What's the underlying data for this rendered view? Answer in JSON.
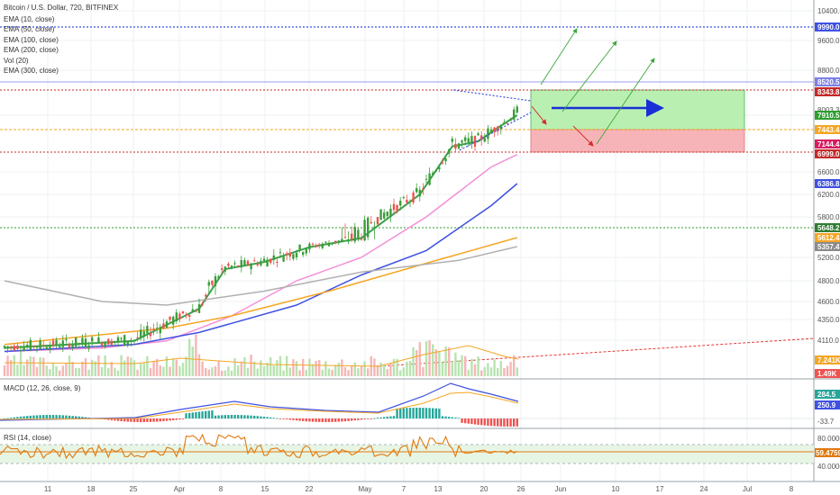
{
  "header": {
    "symbol_title": "Bitcoin / U.S. Dollar, 720, BITFINEX",
    "indicators": [
      "EMA (10, close)",
      "EMA (50, close)",
      "EMA (100, close)",
      "EMA (200, close)",
      "Vol (20)",
      "EMA (300, close)"
    ]
  },
  "panes": {
    "macd_title": "MACD (12, 26, close, 9)",
    "rsi_title": "RSI (14, close)"
  },
  "colors": {
    "up": "#26a69a",
    "candle_up": "#3c9e3a",
    "down": "#ef5350",
    "ema10": "#3aa04a",
    "ema50": "#f48fd8",
    "ema100": "#3f51e0",
    "ema200": "#f5a623",
    "ema300": "#b0b0b0",
    "rsi": "#e07a10",
    "macd_line": "#3f51e0",
    "macd_signal": "#f5a623"
  },
  "chart_data": {
    "type": "line",
    "title": "Bitcoin / U.S. Dollar, 720, BITFINEX",
    "price_axis": {
      "ticks": [
        10400,
        9990,
        9600,
        8800,
        8343.8,
        8003.3,
        7910.5,
        7443.4,
        7144.4,
        6999,
        6600,
        6386.8,
        6200,
        5800,
        5648.2,
        5612.4,
        5357.4,
        5200,
        4800,
        4600,
        4350,
        4110
      ],
      "tick_labels": [
        "10400.0",
        "9990.0",
        "9600.0",
        "8800.0",
        "8343.8",
        "8003.3",
        "7910.5",
        "7443.4",
        "7144.4",
        "6999.0",
        "6600.0",
        "6386.8",
        "6200.0",
        "5800.0",
        "5648.2",
        "5612.4",
        "5357.4",
        "5200.0",
        "4800.0",
        "4600.0",
        "4350.0",
        "4110.0"
      ]
    },
    "price_tags": [
      {
        "label": "9990.0",
        "value": 9990,
        "color": "#3f51e0"
      },
      {
        "label": "8520.5",
        "value": 8520.5,
        "color": "#7b7fe8"
      },
      {
        "label": "8343.8",
        "value": 8343.8,
        "color": "#c62828"
      },
      {
        "label": "7910.5",
        "value": 7910.5,
        "color": "#2e9d2e"
      },
      {
        "label": "7443.4",
        "value": 7443.4,
        "color": "#f5a623"
      },
      {
        "label": "7144.4",
        "value": 7144.4,
        "color": "#d81b60"
      },
      {
        "label": "6999.0",
        "value": 6999,
        "color": "#c62828"
      },
      {
        "label": "6386.8",
        "value": 6386.8,
        "color": "#3f51e0"
      },
      {
        "label": "5648.2",
        "value": 5648.2,
        "color": "#2e7d32"
      },
      {
        "label": "5612.4",
        "value": 5612.4,
        "color": "#f5a623"
      },
      {
        "label": "5357.4",
        "value": 5357.4,
        "color": "#8a8a8a"
      },
      {
        "label": "7.241K",
        "value": 7241,
        "color": "#f5a623"
      },
      {
        "label": "1.49K",
        "value": 1490,
        "color": "#ef5350"
      }
    ],
    "x_labels": [
      "11",
      "18",
      "25",
      "Apr",
      "8",
      "15",
      "22",
      "May",
      "7",
      "13",
      "20",
      "26",
      "Jun",
      "10",
      "17",
      "24",
      "Jul",
      "8"
    ],
    "macd_axis": {
      "tick_labels": [
        "284.5",
        "250.9",
        "-33.7"
      ]
    },
    "rsi_axis": {
      "tick_labels": [
        "80.0000",
        "59.4759",
        "40.0000"
      ]
    },
    "series": [
      {
        "name": "EMA (10, close)",
        "points": [
          [
            0,
            4000
          ],
          [
            20,
            4050
          ],
          [
            40,
            4100
          ],
          [
            60,
            4500
          ],
          [
            68,
            5000
          ],
          [
            80,
            5120
          ],
          [
            94,
            5350
          ],
          [
            110,
            5600
          ],
          [
            128,
            6200
          ],
          [
            138,
            7100
          ],
          [
            146,
            7200
          ],
          [
            152,
            7500
          ],
          [
            158,
            7910.5
          ]
        ]
      },
      {
        "name": "EMA (50, close)",
        "points": [
          [
            0,
            3950
          ],
          [
            30,
            4000
          ],
          [
            50,
            4100
          ],
          [
            70,
            4400
          ],
          [
            90,
            4800
          ],
          [
            110,
            5200
          ],
          [
            130,
            5800
          ],
          [
            150,
            6700
          ],
          [
            158,
            6950
          ]
        ]
      },
      {
        "name": "EMA (100, close)",
        "points": [
          [
            0,
            3950
          ],
          [
            40,
            4050
          ],
          [
            60,
            4200
          ],
          [
            90,
            4550
          ],
          [
            110,
            4900
          ],
          [
            130,
            5300
          ],
          [
            150,
            6000
          ],
          [
            158,
            6386.8
          ]
        ]
      },
      {
        "name": "EMA (200, close)",
        "points": [
          [
            0,
            4050
          ],
          [
            50,
            4250
          ],
          [
            70,
            4400
          ],
          [
            100,
            4700
          ],
          [
            130,
            5100
          ],
          [
            158,
            5612.4
          ]
        ]
      },
      {
        "name": "EMA (300, close)",
        "points": [
          [
            0,
            4800
          ],
          [
            30,
            4600
          ],
          [
            50,
            4550
          ],
          [
            80,
            4700
          ],
          [
            110,
            4950
          ],
          [
            140,
            5150
          ],
          [
            158,
            5357.4
          ]
        ]
      }
    ]
  }
}
